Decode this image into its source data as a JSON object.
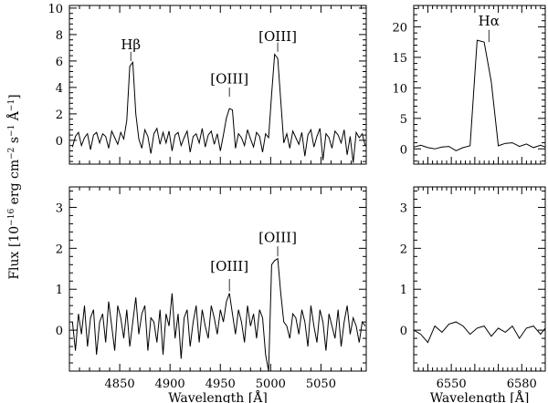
{
  "figure": {
    "ylabel_main": "Flux [10",
    "ylabel_exp1": "−16",
    "ylabel_mid": " erg cm",
    "ylabel_exp2": "−2",
    "ylabel_mid2": " s",
    "ylabel_exp3": "−1",
    "ylabel_mid3": " Å",
    "ylabel_exp4": "−1",
    "ylabel_end": "]"
  },
  "chart_data": [
    {
      "type": "line",
      "panel": "top-left",
      "xlim": [
        4800,
        5095
      ],
      "ylim": [
        -1.8,
        10.2
      ],
      "yticks": [
        0,
        2,
        4,
        6,
        8,
        10
      ],
      "xticks": [
        4850,
        4900,
        4950,
        5000,
        5050
      ],
      "show_xtick_labels": false,
      "xlabel": "",
      "annotations": [
        {
          "text": "Hβ",
          "x": 4861,
          "y": 6.9,
          "ly0": 6.0,
          "ly1": 6.7
        },
        {
          "text": "[OIII]",
          "x": 4959,
          "y": 4.3,
          "ly0": 3.3,
          "ly1": 4.0
        },
        {
          "text": "[OIII]",
          "x": 5007,
          "y": 7.5,
          "ly0": 6.7,
          "ly1": 7.4
        }
      ],
      "series": [
        {
          "x": [
            4803,
            4806,
            4809,
            4812,
            4815,
            4818,
            4821,
            4824,
            4827,
            4830,
            4833,
            4836,
            4839,
            4842,
            4845,
            4848,
            4851,
            4854,
            4857,
            4860,
            4863,
            4866,
            4869,
            4872,
            4875,
            4878,
            4881,
            4884,
            4887,
            4890,
            4893,
            4896,
            4899,
            4902,
            4905,
            4908,
            4911,
            4914,
            4917,
            4920,
            4923,
            4926,
            4929,
            4932,
            4935,
            4938,
            4941,
            4944,
            4947,
            4950,
            4953,
            4956,
            4959,
            4962,
            4965,
            4968,
            4971,
            4974,
            4977,
            4980,
            4983,
            4986,
            4989,
            4992,
            4995,
            4998,
            5001,
            5004,
            5007,
            5010,
            5013,
            5016,
            5019,
            5022,
            5025,
            5028,
            5031,
            5034,
            5037,
            5040,
            5043,
            5046,
            5049,
            5052,
            5055,
            5058,
            5061,
            5064,
            5067,
            5070,
            5073,
            5076,
            5079,
            5082,
            5085,
            5088,
            5091,
            5094
          ],
          "values": [
            -0.5,
            0.3,
            0.6,
            -0.4,
            0.2,
            0.5,
            -0.7,
            0.4,
            0.6,
            -0.2,
            0.5,
            0.3,
            -0.6,
            0.7,
            0.2,
            -0.3,
            0.6,
            0.1,
            1.5,
            5.6,
            5.9,
            2.0,
            0.1,
            -0.6,
            0.8,
            0.3,
            -1.0,
            0.5,
            0.9,
            -0.3,
            0.6,
            -0.2,
            0.7,
            -0.8,
            0.4,
            0.6,
            -0.4,
            0.2,
            0.7,
            -0.9,
            0.3,
            0.5,
            -0.2,
            0.9,
            -0.5,
            0.4,
            0.7,
            -0.3,
            0.5,
            -0.8,
            0.4,
            1.7,
            2.4,
            2.3,
            -0.6,
            0.5,
            0.2,
            -0.4,
            0.8,
            0.1,
            -0.5,
            0.6,
            0.3,
            -0.9,
            0.5,
            0.2,
            3.5,
            6.5,
            6.2,
            3.0,
            -0.2,
            0.5,
            -0.6,
            0.7,
            0.2,
            -0.3,
            0.6,
            -1.2,
            0.4,
            0.8,
            -0.5,
            0.3,
            0.9,
            -1.5,
            0.5,
            0.2,
            -0.6,
            0.7,
            0.4,
            -0.2,
            0.8,
            -1.1,
            0.3,
            -1.7,
            0.6,
            0.2,
            0.5,
            -0.4
          ]
        }
      ]
    },
    {
      "type": "line",
      "panel": "top-right",
      "xlim": [
        6534,
        6590
      ],
      "ylim": [
        -2.5,
        23.5
      ],
      "yticks": [
        0,
        5,
        10,
        15,
        20
      ],
      "xticks": [
        6540,
        6550,
        6560,
        6570,
        6580
      ],
      "show_xtick_labels": false,
      "xlabel": "",
      "annotations": [
        {
          "text": "Hα",
          "x": 6566,
          "y": 20.2,
          "ly0": 17.5,
          "ly1": 19.5
        }
      ],
      "series": [
        {
          "x": [
            6534,
            6537,
            6540,
            6543,
            6546,
            6549,
            6552,
            6555,
            6558,
            6561,
            6564,
            6567,
            6570,
            6573,
            6576,
            6579,
            6582,
            6585,
            6588,
            6590
          ],
          "values": [
            0.3,
            0.6,
            0.2,
            0.0,
            0.3,
            0.4,
            -0.3,
            0.2,
            0.5,
            17.8,
            17.5,
            11.0,
            0.5,
            0.9,
            1.0,
            0.4,
            0.8,
            0.2,
            0.6,
            0.3
          ]
        }
      ]
    },
    {
      "type": "line",
      "panel": "bottom-left",
      "xlim": [
        4800,
        5095
      ],
      "ylim": [
        -1.0,
        3.5
      ],
      "yticks": [
        0,
        1,
        2,
        3
      ],
      "xticks": [
        4850,
        4900,
        4950,
        5000,
        5050
      ],
      "xtick_labels": [
        "4850",
        "4900",
        "4950",
        "5000",
        "5050"
      ],
      "show_xtick_labels": true,
      "xlabel": "Wavelength [Å]",
      "annotations": [
        {
          "text": "[OIII]",
          "x": 4959,
          "y": 1.45,
          "ly0": 0.95,
          "ly1": 1.25
        },
        {
          "text": "[OIII]",
          "x": 5007,
          "y": 2.15,
          "ly0": 1.8,
          "ly1": 2.05
        }
      ],
      "series": [
        {
          "x": [
            4803,
            4806,
            4809,
            4812,
            4815,
            4818,
            4821,
            4824,
            4827,
            4830,
            4833,
            4836,
            4839,
            4842,
            4845,
            4848,
            4851,
            4854,
            4857,
            4860,
            4863,
            4866,
            4869,
            4872,
            4875,
            4878,
            4881,
            4884,
            4887,
            4890,
            4893,
            4896,
            4899,
            4902,
            4905,
            4908,
            4911,
            4914,
            4917,
            4920,
            4923,
            4926,
            4929,
            4932,
            4935,
            4938,
            4941,
            4944,
            4947,
            4950,
            4953,
            4956,
            4959,
            4962,
            4965,
            4968,
            4971,
            4974,
            4977,
            4980,
            4983,
            4986,
            4989,
            4992,
            4995,
            4998,
            5001,
            5004,
            5007,
            5010,
            5013,
            5016,
            5019,
            5022,
            5025,
            5028,
            5031,
            5034,
            5037,
            5040,
            5043,
            5046,
            5049,
            5052,
            5055,
            5058,
            5061,
            5064,
            5067,
            5070,
            5073,
            5076,
            5079,
            5082,
            5085,
            5088,
            5091,
            5094
          ],
          "values": [
            0.2,
            -0.5,
            0.4,
            -0.1,
            0.6,
            -0.4,
            0.3,
            0.5,
            -0.6,
            0.2,
            0.4,
            -0.3,
            0.7,
            0.1,
            -0.5,
            0.6,
            0.3,
            -0.2,
            0.5,
            -0.4,
            0.2,
            0.8,
            -0.1,
            0.4,
            0.6,
            -0.5,
            0.3,
            0.2,
            -0.3,
            0.5,
            -0.6,
            0.4,
            0.1,
            0.9,
            -0.2,
            0.4,
            -0.7,
            0.3,
            0.5,
            -0.4,
            0.2,
            0.6,
            -0.3,
            0.5,
            0.1,
            -0.2,
            0.6,
            0.3,
            -0.1,
            0.5,
            0.2,
            0.7,
            0.9,
            0.4,
            -0.1,
            0.5,
            0.2,
            -0.3,
            0.6,
            0.1,
            0.4,
            -0.2,
            0.5,
            0.3,
            -0.6,
            -1.0,
            1.6,
            1.7,
            1.75,
            0.9,
            0.2,
            0.1,
            -0.2,
            0.4,
            0.3,
            -0.1,
            0.5,
            0.2,
            -0.4,
            0.6,
            0.1,
            -0.3,
            0.5,
            0.2,
            -0.5,
            0.4,
            0.1,
            -0.2,
            0.5,
            -0.4,
            0.2,
            0.6,
            -0.1,
            0.3,
            0.1,
            -0.3,
            0.2,
            0.1
          ]
        }
      ]
    },
    {
      "type": "line",
      "panel": "bottom-right",
      "xlim": [
        6534,
        6590
      ],
      "ylim": [
        -1.0,
        3.5
      ],
      "yticks": [
        0,
        1,
        2,
        3
      ],
      "xticks": [
        6540,
        6550,
        6560,
        6570,
        6580
      ],
      "xtick_labels": [
        "",
        "6550",
        "",
        "",
        "6580"
      ],
      "show_xtick_labels": true,
      "xlabel": "Wavelength [Å]",
      "annotations": [],
      "series": [
        {
          "x": [
            6534,
            6537,
            6540,
            6543,
            6546,
            6549,
            6552,
            6555,
            6558,
            6561,
            6564,
            6567,
            6570,
            6573,
            6576,
            6579,
            6582,
            6585,
            6588,
            6590
          ],
          "values": [
            0.0,
            -0.1,
            -0.3,
            0.1,
            -0.05,
            0.15,
            0.2,
            0.1,
            -0.1,
            0.05,
            0.1,
            -0.15,
            0.05,
            -0.05,
            0.1,
            -0.2,
            0.05,
            0.1,
            -0.1,
            0.05
          ]
        }
      ]
    }
  ]
}
